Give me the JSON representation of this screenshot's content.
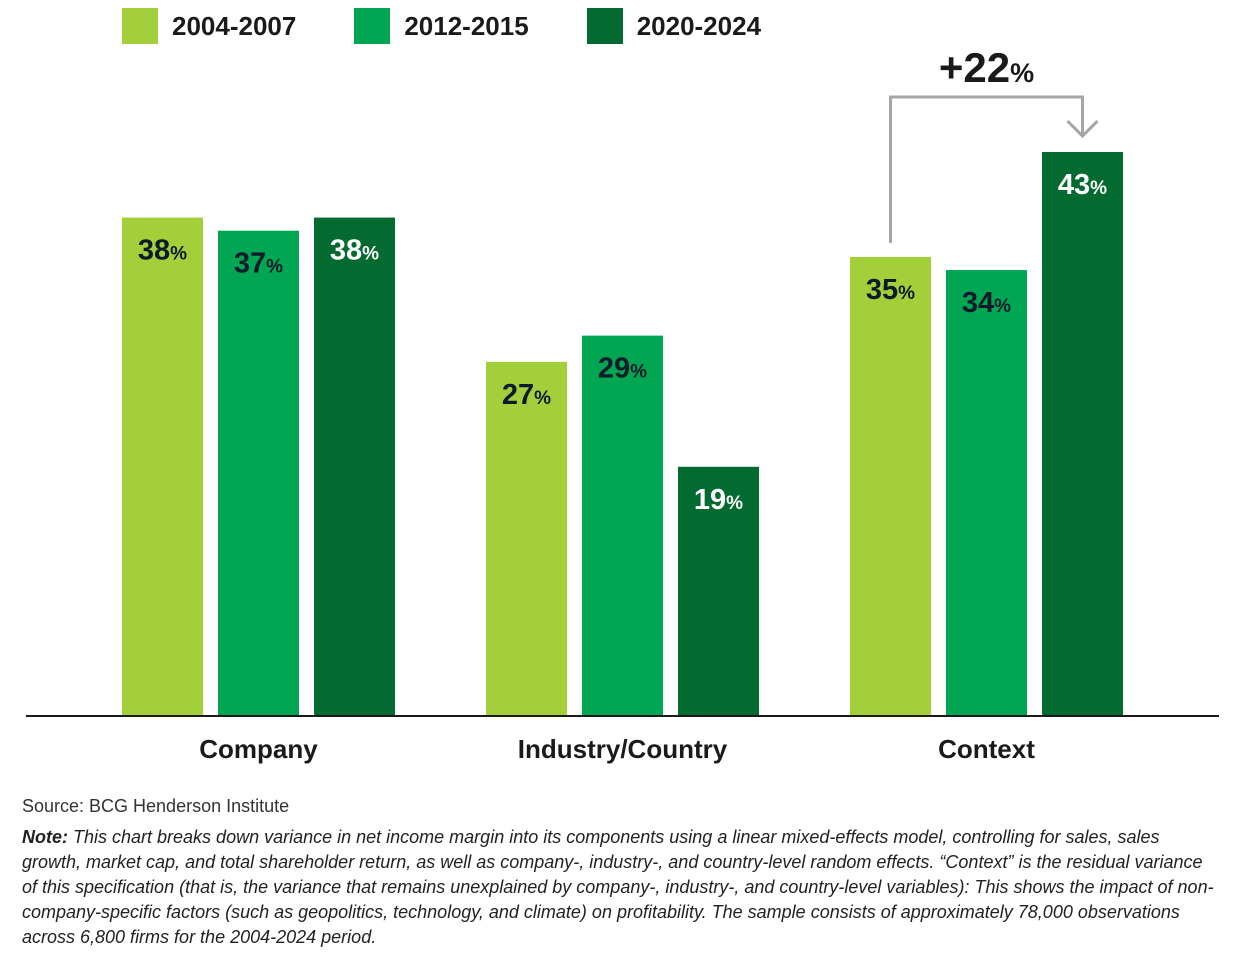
{
  "legend": [
    {
      "label": "2004-2007",
      "color": "#a3cf3a"
    },
    {
      "label": "2012-2015",
      "color": "#00a651"
    },
    {
      "label": "2020-2024",
      "color": "#046b30"
    }
  ],
  "chart_data": {
    "type": "bar",
    "categories": [
      "Company",
      "Industry/Country",
      "Context"
    ],
    "series": [
      {
        "name": "2004-2007",
        "values": [
          38,
          27,
          35
        ],
        "color": "#a3cf3a"
      },
      {
        "name": "2012-2015",
        "values": [
          37,
          29,
          34
        ],
        "color": "#00a651"
      },
      {
        "name": "2020-2024",
        "values": [
          38,
          19,
          43
        ],
        "color": "#046b30"
      }
    ],
    "value_suffix": "%",
    "ylim": [
      0,
      43
    ],
    "grid": false,
    "legend_position": "top-left",
    "annotation": {
      "text_number": "+22",
      "text_suffix": "%",
      "category": "Context",
      "from_series": "2004-2007",
      "to_series": "2020-2024"
    }
  },
  "source": "Source: BCG Henderson Institute",
  "note_label": "Note:",
  "note_text": " This chart breaks down variance in net income margin into its components using a linear mixed-effects model, controlling for sales, sales growth, market cap, and total shareholder return, as well as company-, industry-, and country-level random effects. “Context” is the residual variance of this specification (that is, the variance that remains unexplained by company-, industry-, and country-level variables): This shows the impact of non-company-specific factors (such as geopolitics, technology, and climate) on profitability. The sample consists of approximately 78,000 observations across 6,800 firms for the 2004-2024 period."
}
